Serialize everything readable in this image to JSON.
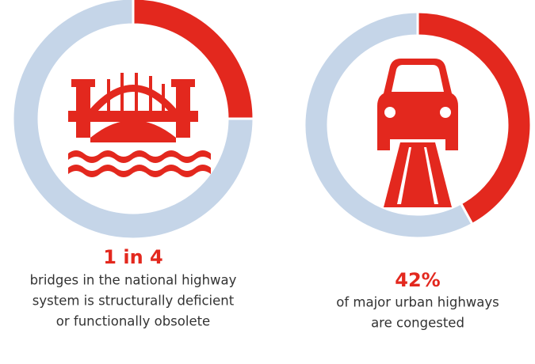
{
  "chart_data": [
    {
      "type": "donut",
      "values": [
        25,
        75
      ],
      "value_labels": [
        "1 in 4",
        null
      ],
      "colors": [
        "#e3281e",
        "#c5d5e8"
      ],
      "caption": [
        "bridges in the national highway",
        "system is structurally deficient",
        "or functionally obsolete"
      ]
    },
    {
      "type": "donut",
      "values": [
        42,
        58
      ],
      "value_labels": [
        "42%",
        null
      ],
      "colors": [
        "#e3281e",
        "#c5d5e8"
      ],
      "caption": [
        "of major urban highways",
        "are congested"
      ]
    }
  ]
}
